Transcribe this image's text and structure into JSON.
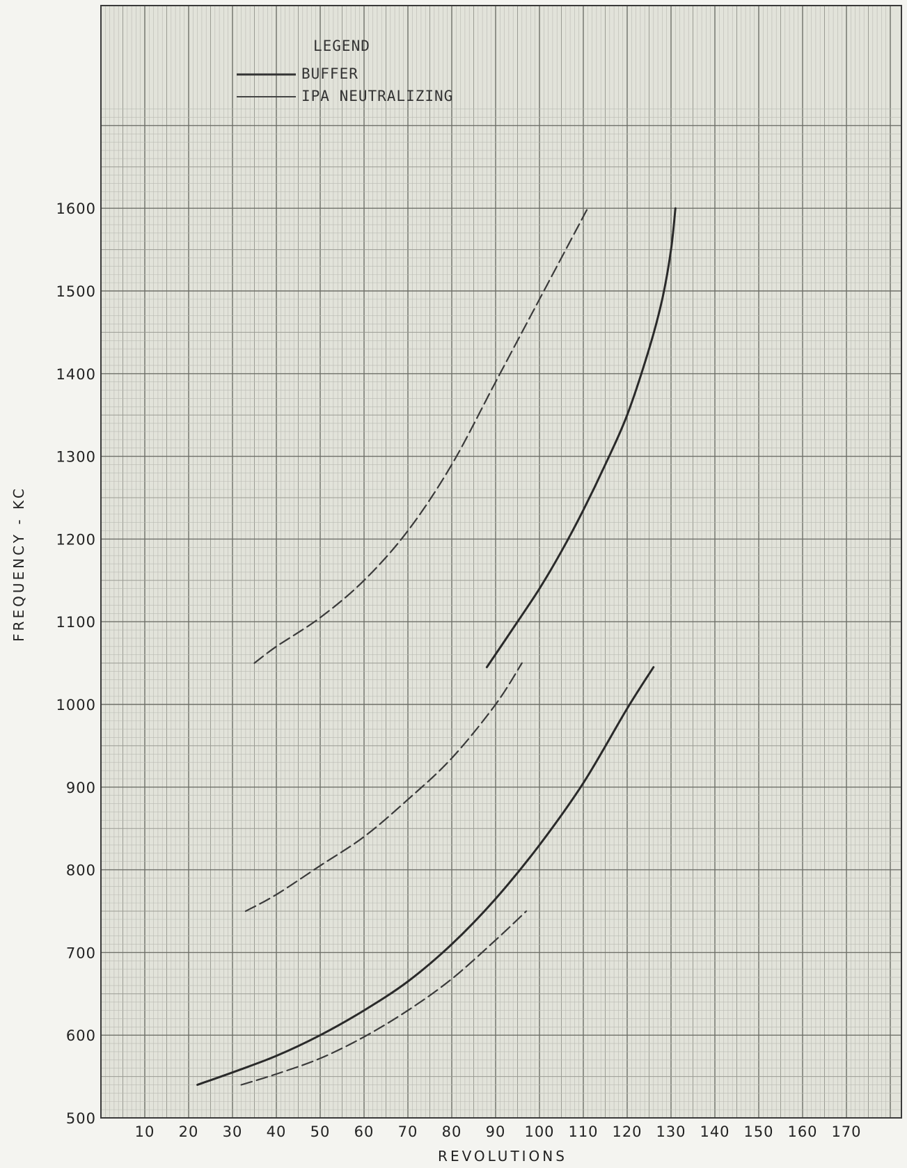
{
  "chart_data": {
    "type": "line",
    "title": "",
    "xlabel": "REVOLUTIONS",
    "ylabel": "FREQUENCY - KC",
    "xlim": [
      0,
      180
    ],
    "ylim": [
      500,
      1720
    ],
    "x_ticks": [
      "10",
      "20",
      "30",
      "40",
      "50",
      "60",
      "70",
      "80",
      "90",
      "100",
      "110",
      "120",
      "130",
      "140",
      "150",
      "160",
      "170"
    ],
    "y_ticks": [
      "500",
      "600",
      "700",
      "800",
      "900",
      "1000",
      "1100",
      "1200",
      "1300",
      "1400",
      "1500",
      "1600"
    ],
    "grid": true,
    "legend": {
      "title": "LEGEND",
      "position": "top-left",
      "entries": [
        {
          "label": "BUFFER",
          "style": "solid"
        },
        {
          "label": "IPA NEUTRALIZING",
          "style": "dashed"
        }
      ]
    },
    "series": [
      {
        "legend": "BUFFER",
        "style": "solid",
        "x": [
          22,
          30,
          40,
          50,
          60,
          70,
          80,
          90,
          100,
          110,
          120,
          126
        ],
        "y": [
          540,
          555,
          575,
          600,
          630,
          665,
          710,
          765,
          830,
          905,
          995,
          1045
        ]
      },
      {
        "legend": "BUFFER",
        "style": "solid",
        "x": [
          88,
          95,
          100,
          105,
          110,
          115,
          120,
          125,
          128,
          130,
          131
        ],
        "y": [
          1045,
          1100,
          1140,
          1185,
          1235,
          1290,
          1350,
          1430,
          1490,
          1550,
          1600
        ]
      },
      {
        "legend": "IPA NEUTRALIZING",
        "style": "dashed",
        "x": [
          32,
          40,
          50,
          60,
          70,
          80,
          90,
          97
        ],
        "y": [
          540,
          553,
          572,
          598,
          630,
          668,
          715,
          750
        ]
      },
      {
        "legend": "IPA NEUTRALIZING",
        "style": "dashed",
        "x": [
          33,
          40,
          50,
          60,
          70,
          80,
          90,
          96
        ],
        "y": [
          750,
          770,
          805,
          840,
          885,
          935,
          1000,
          1050
        ]
      },
      {
        "legend": "IPA NEUTRALIZING",
        "style": "dashed",
        "x": [
          35,
          40,
          50,
          60,
          70,
          80,
          90,
          100,
          105,
          108,
          111
        ],
        "y": [
          1050,
          1070,
          1105,
          1150,
          1210,
          1290,
          1390,
          1490,
          1540,
          1570,
          1600
        ]
      }
    ]
  }
}
